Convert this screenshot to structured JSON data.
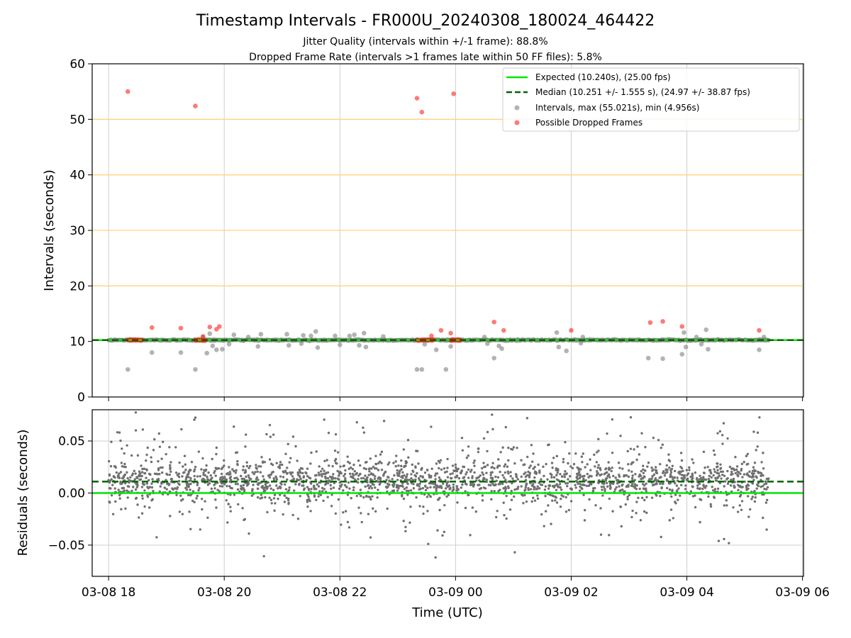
{
  "figure": {
    "title": "Timestamp Intervals - FR000U_20240308_180024_464422",
    "subtitle_1": "Jitter Quality (intervals within +/-1 frame): 88.8%",
    "subtitle_2": "Dropped Frame Rate (intervals >1 frames late within 50 FF files): 5.8%"
  },
  "chart_data": [
    {
      "type": "scatter",
      "panel": "intervals",
      "xlabel": "",
      "ylabel": "Intervals (seconds)",
      "ylim": [
        0,
        60
      ],
      "yticks": [
        0,
        10,
        20,
        30,
        40,
        50,
        60
      ],
      "y_tick_labels": [
        "0",
        "10",
        "20",
        "30",
        "40",
        "50",
        "60"
      ],
      "x_tick_labels": [
        "03-08 18",
        "03-08 20",
        "03-08 22",
        "03-09 00",
        "03-09 02",
        "03-09 04",
        "03-09 06"
      ],
      "grid": true,
      "threshold_lines": {
        "color": "#ffd27f",
        "values": [
          20,
          30,
          40,
          50
        ]
      },
      "legend_position": "top-right",
      "expected_line": {
        "label": "Expected (10.240s), (25.00 fps)",
        "value": 10.24,
        "color": "#00e600"
      },
      "median_line": {
        "label": "Median (10.251 +/- 1.555 s), (24.97 +/- 38.87 fps)",
        "value": 10.251,
        "color": "#006400"
      },
      "series": [
        {
          "name": "Intervals, max (55.021s), min (4.956s)",
          "color": "#808080",
          "points": [
            [
              "2024-03-08 18:20",
              4.96
            ],
            [
              "2024-03-08 18:45",
              8.0
            ],
            [
              "2024-03-08 19:15",
              8.0
            ],
            [
              "2024-03-08 19:30",
              4.96
            ],
            [
              "2024-03-08 19:38",
              10.8
            ],
            [
              "2024-03-08 19:42",
              7.9
            ],
            [
              "2024-03-08 19:45",
              11.4
            ],
            [
              "2024-03-08 19:48",
              9.2
            ],
            [
              "2024-03-08 19:52",
              8.5
            ],
            [
              "2024-03-08 19:58",
              8.6
            ],
            [
              "2024-03-08 20:05",
              9.5
            ],
            [
              "2024-03-08 20:10",
              11.2
            ],
            [
              "2024-03-08 20:25",
              10.8
            ],
            [
              "2024-03-08 20:35",
              9.1
            ],
            [
              "2024-03-08 20:38",
              11.3
            ],
            [
              "2024-03-08 21:05",
              11.3
            ],
            [
              "2024-03-08 21:07",
              9.3
            ],
            [
              "2024-03-08 21:20",
              9.6
            ],
            [
              "2024-03-08 21:22",
              11.1
            ],
            [
              "2024-03-08 21:30",
              11.0
            ],
            [
              "2024-03-08 21:35",
              11.8
            ],
            [
              "2024-03-08 21:37",
              8.9
            ],
            [
              "2024-03-08 21:55",
              11.0
            ],
            [
              "2024-03-08 22:00",
              9.4
            ],
            [
              "2024-03-08 22:10",
              11.0
            ],
            [
              "2024-03-08 22:15",
              11.2
            ],
            [
              "2024-03-08 22:20",
              9.3
            ],
            [
              "2024-03-08 22:25",
              11.5
            ],
            [
              "2024-03-08 22:27",
              9.0
            ],
            [
              "2024-03-08 22:45",
              10.9
            ],
            [
              "2024-03-08 23:20",
              4.96
            ],
            [
              "2024-03-08 23:25",
              4.96
            ],
            [
              "2024-03-08 23:28",
              9.5
            ],
            [
              "2024-03-08 23:40",
              8.5
            ],
            [
              "2024-03-08 23:50",
              4.96
            ],
            [
              "2024-03-08 23:55",
              9.1
            ],
            [
              "2024-03-09 00:30",
              10.8
            ],
            [
              "2024-03-09 00:33",
              9.6
            ],
            [
              "2024-03-09 00:40",
              7.0
            ],
            [
              "2024-03-09 00:45",
              9.2
            ],
            [
              "2024-03-09 00:48",
              8.7
            ],
            [
              "2024-03-09 01:45",
              11.6
            ],
            [
              "2024-03-09 01:47",
              9.0
            ],
            [
              "2024-03-09 01:55",
              8.3
            ],
            [
              "2024-03-09 02:10",
              9.7
            ],
            [
              "2024-03-09 02:12",
              10.8
            ],
            [
              "2024-03-09 03:20",
              7.0
            ],
            [
              "2024-03-09 03:35",
              6.9
            ],
            [
              "2024-03-09 03:55",
              7.7
            ],
            [
              "2024-03-09 03:57",
              11.6
            ],
            [
              "2024-03-09 03:59",
              9.0
            ],
            [
              "2024-03-09 04:10",
              10.8
            ],
            [
              "2024-03-09 04:15",
              9.5
            ],
            [
              "2024-03-09 04:20",
              12.1
            ],
            [
              "2024-03-09 04:22",
              8.6
            ],
            [
              "2024-03-09 05:15",
              8.5
            ],
            [
              "2024-03-09 05:20",
              10.8
            ]
          ]
        },
        {
          "name": "Possible Dropped Frames",
          "color": "#ff2020",
          "points": [
            [
              "2024-03-08 18:20",
              55.0
            ],
            [
              "2024-03-08 18:45",
              12.5
            ],
            [
              "2024-03-08 19:15",
              12.4
            ],
            [
              "2024-03-08 19:30",
              52.4
            ],
            [
              "2024-03-08 19:38",
              10.9
            ],
            [
              "2024-03-08 19:45",
              12.6
            ],
            [
              "2024-03-08 19:52",
              12.2
            ],
            [
              "2024-03-08 19:55",
              12.7
            ],
            [
              "2024-03-08 23:20",
              53.8
            ],
            [
              "2024-03-08 23:25",
              51.3
            ],
            [
              "2024-03-08 23:35",
              11.0
            ],
            [
              "2024-03-08 23:45",
              12.0
            ],
            [
              "2024-03-08 23:55",
              11.5
            ],
            [
              "2024-03-08 23:58",
              54.6
            ],
            [
              "2024-03-09 00:40",
              13.5
            ],
            [
              "2024-03-09 00:50",
              12.0
            ],
            [
              "2024-03-09 02:00",
              12.0
            ],
            [
              "2024-03-09 03:22",
              13.4
            ],
            [
              "2024-03-09 03:35",
              13.6
            ],
            [
              "2024-03-09 03:55",
              12.7
            ],
            [
              "2024-03-09 05:15",
              12.0
            ]
          ],
          "dense_clusters": [
            {
              "start": "2024-03-08 18:20",
              "end": "2024-03-08 18:35",
              "value": 10.24
            },
            {
              "start": "2024-03-08 19:30",
              "end": "2024-03-08 19:40",
              "value": 10.24
            },
            {
              "start": "2024-03-08 23:20",
              "end": "2024-03-08 23:37",
              "value": 10.24
            },
            {
              "start": "2024-03-08 23:55",
              "end": "2024-03-09 00:05",
              "value": 10.24
            }
          ]
        }
      ]
    },
    {
      "type": "scatter",
      "panel": "residuals",
      "xlabel": "Time (UTC)",
      "ylabel": "Residuals (seconds)",
      "ylim": [
        -0.08,
        0.08
      ],
      "yticks": [
        -0.05,
        0,
        0.05
      ],
      "y_tick_labels": [
        "−0.05",
        "0.00",
        "0.05"
      ],
      "x_tick_labels": [
        "03-08 18",
        "03-08 20",
        "03-08 22",
        "03-09 00",
        "03-09 02",
        "03-09 04",
        "03-09 06"
      ],
      "grid": true,
      "expected_line": {
        "value": 0.0,
        "color": "#00e600"
      },
      "median_line": {
        "value": 0.011,
        "color": "#006400"
      },
      "series": [
        {
          "name": "",
          "color": "#707070",
          "x_range": [
            "2024-03-08 18:00",
            "2024-03-09 05:25"
          ],
          "approx_count": 2200,
          "center": 0.012,
          "spread": 0.02,
          "ylim_clip": [
            -0.08,
            0.08
          ]
        }
      ]
    }
  ]
}
